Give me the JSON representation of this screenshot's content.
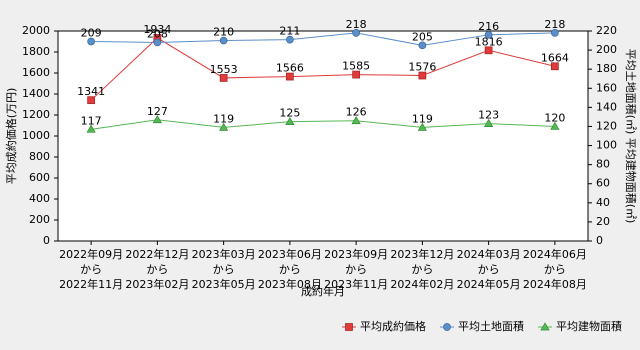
{
  "chart_data": {
    "type": "line",
    "x_label": "成約年月",
    "y_label": "平均成約価格(万円)",
    "y2_label": "平均土地面積(㎡) 平均建物面積(㎡)",
    "categories": [
      [
        "2022年09月",
        "から",
        "2022年11月"
      ],
      [
        "2022年12月",
        "から",
        "2023年02月"
      ],
      [
        "2023年03月",
        "から",
        "2023年05月"
      ],
      [
        "2023年06月",
        "から",
        "2023年08月"
      ],
      [
        "2023年09月",
        "から",
        "2023年11月"
      ],
      [
        "2023年12月",
        "から",
        "2024年02月"
      ],
      [
        "2024年03月",
        "から",
        "2024年05月"
      ],
      [
        "2024年06月",
        "から",
        "2024年08月"
      ]
    ],
    "series": [
      {
        "name": "平均成約価格",
        "color": "#e03a3a",
        "marker": "square",
        "axis": "y",
        "values": [
          1341,
          1934,
          1553,
          1566,
          1585,
          1576,
          1816,
          1664
        ]
      },
      {
        "name": "平均土地面積",
        "color": "#5b8fc9",
        "marker": "circle",
        "axis": "y2",
        "values": [
          209,
          208,
          210,
          211,
          218,
          205,
          216,
          218
        ]
      },
      {
        "name": "平均建物面積",
        "color": "#55b855",
        "marker": "triangle",
        "axis": "y2",
        "values": [
          117,
          127,
          119,
          125,
          126,
          119,
          123,
          120
        ]
      }
    ],
    "ylim": [
      0,
      2000
    ],
    "yticks": [
      0,
      200,
      400,
      600,
      800,
      1000,
      1200,
      1400,
      1600,
      1800,
      2000
    ],
    "y2lim": [
      0,
      220
    ],
    "y2ticks": [
      0,
      20,
      40,
      60,
      80,
      100,
      120,
      140,
      160,
      180,
      200,
      220
    ],
    "legend": "bottom-right",
    "grid": false
  }
}
